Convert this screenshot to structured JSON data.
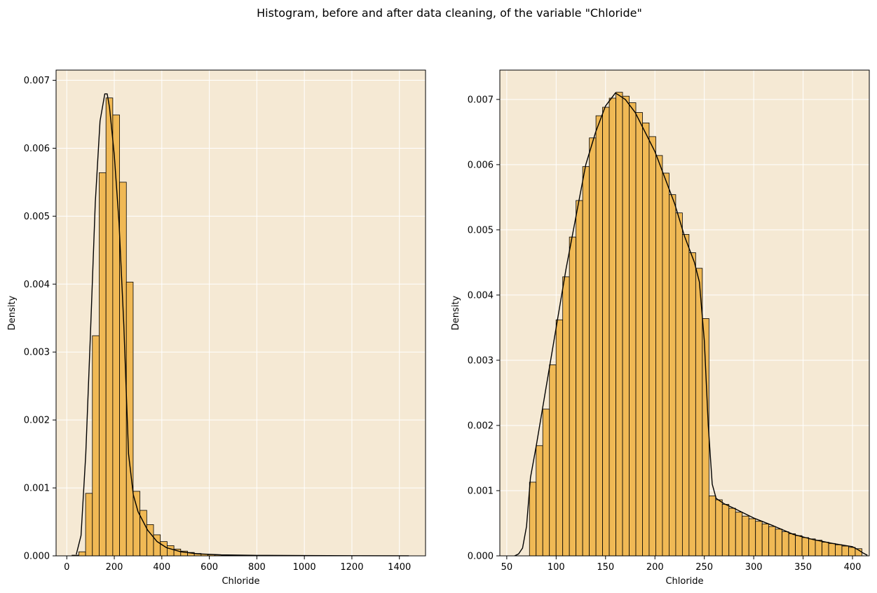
{
  "figure": {
    "suptitle": "Histogram, before and after data cleaning, of the variable \"Chloride\""
  },
  "colors": {
    "axes_background": "#f5e9d4",
    "bar_fill": "#f0b955",
    "bar_edge": "#000000",
    "kde_line": "#000000",
    "grid": "#ffffff"
  },
  "chart_data": [
    {
      "type": "bar",
      "title": "",
      "xlabel": "Chloride",
      "ylabel": "Density",
      "xlim": [
        -45,
        1510
      ],
      "ylim": [
        0,
        0.00715
      ],
      "grid": true,
      "xticks": [
        0,
        200,
        400,
        600,
        800,
        1000,
        1200,
        1400
      ],
      "yticks": [
        0.0,
        0.001,
        0.002,
        0.003,
        0.004,
        0.005,
        0.006,
        0.007
      ],
      "bin_start": 22,
      "bin_width": 28.6,
      "values": [
        1e-05,
        6e-05,
        0.00092,
        0.00324,
        0.00564,
        0.00674,
        0.00649,
        0.0055,
        0.00403,
        0.00095,
        0.00067,
        0.00046,
        0.00031,
        0.00021,
        0.00015,
        0.0001,
        7e-05,
        5e-05,
        3.5e-05,
        2.5e-05,
        1.8e-05,
        1.3e-05,
        1e-05,
        8e-06,
        6e-06,
        5e-06,
        4e-06,
        4e-06,
        3e-06,
        3e-06,
        2e-06,
        2e-06,
        2e-06,
        2e-06,
        1e-06,
        1e-06,
        1e-06,
        1e-06,
        1e-06,
        1e-06,
        1e-06,
        1e-06,
        1e-06,
        1e-06,
        1e-06,
        1e-06,
        1e-06,
        1e-06,
        1e-06,
        1e-06
      ],
      "kde": {
        "x": [
          40,
          60,
          80,
          100,
          120,
          140,
          160,
          170,
          180,
          200,
          220,
          240,
          260,
          280,
          300,
          340,
          380,
          420,
          480,
          550,
          650,
          800,
          1000,
          1200,
          1440
        ],
        "y": [
          2e-05,
          0.0003,
          0.0015,
          0.0033,
          0.0052,
          0.0064,
          0.0068,
          0.0068,
          0.0066,
          0.0059,
          0.0049,
          0.0034,
          0.0015,
          0.0009,
          0.00065,
          0.00038,
          0.00021,
          0.00012,
          6e-05,
          3e-05,
          1.5e-05,
          7e-06,
          4e-06,
          2e-06,
          1e-06
        ]
      }
    },
    {
      "type": "bar",
      "title": "",
      "xlabel": "Chloride",
      "ylabel": "Density",
      "xlim": [
        43,
        417
      ],
      "ylim": [
        0,
        0.00745
      ],
      "grid": true,
      "xticks": [
        50,
        100,
        150,
        200,
        250,
        300,
        350,
        400
      ],
      "yticks": [
        0.0,
        0.001,
        0.002,
        0.003,
        0.004,
        0.005,
        0.006,
        0.007
      ],
      "bin_start": 73,
      "bin_width": 6.73,
      "values": [
        0.00113,
        0.00169,
        0.00225,
        0.00293,
        0.00362,
        0.00428,
        0.00489,
        0.00545,
        0.00597,
        0.00641,
        0.00675,
        0.00688,
        0.00702,
        0.00711,
        0.00705,
        0.00695,
        0.0068,
        0.00664,
        0.00643,
        0.00614,
        0.00587,
        0.00554,
        0.00526,
        0.00493,
        0.00465,
        0.00441,
        0.00364,
        0.00092,
        0.00086,
        0.00079,
        0.00073,
        0.00067,
        0.00061,
        0.00057,
        0.00053,
        0.00049,
        0.00045,
        0.00041,
        0.00037,
        0.00034,
        0.00031,
        0.00028,
        0.00026,
        0.00024,
        0.00021,
        0.00019,
        0.00017,
        0.00015,
        0.00013,
        0.00011
      ],
      "kde": {
        "x": [
          58,
          62,
          66,
          70,
          74,
          80,
          90,
          100,
          110,
          120,
          130,
          140,
          150,
          160,
          170,
          180,
          190,
          200,
          210,
          220,
          230,
          240,
          245,
          250,
          254,
          258,
          262,
          270,
          280,
          300,
          320,
          340,
          360,
          380,
          400,
          405,
          410,
          415
        ],
        "y": [
          0.0,
          3e-05,
          0.00012,
          0.00045,
          0.0012,
          0.0017,
          0.0026,
          0.0035,
          0.0044,
          0.0052,
          0.006,
          0.0065,
          0.0069,
          0.0071,
          0.007,
          0.0068,
          0.0065,
          0.0062,
          0.0058,
          0.0054,
          0.0049,
          0.0045,
          0.0042,
          0.0033,
          0.002,
          0.0011,
          0.00088,
          0.0008,
          0.00073,
          0.00058,
          0.00046,
          0.00033,
          0.00025,
          0.00019,
          0.00014,
          0.0001,
          5e-05,
          1e-05
        ]
      }
    }
  ]
}
